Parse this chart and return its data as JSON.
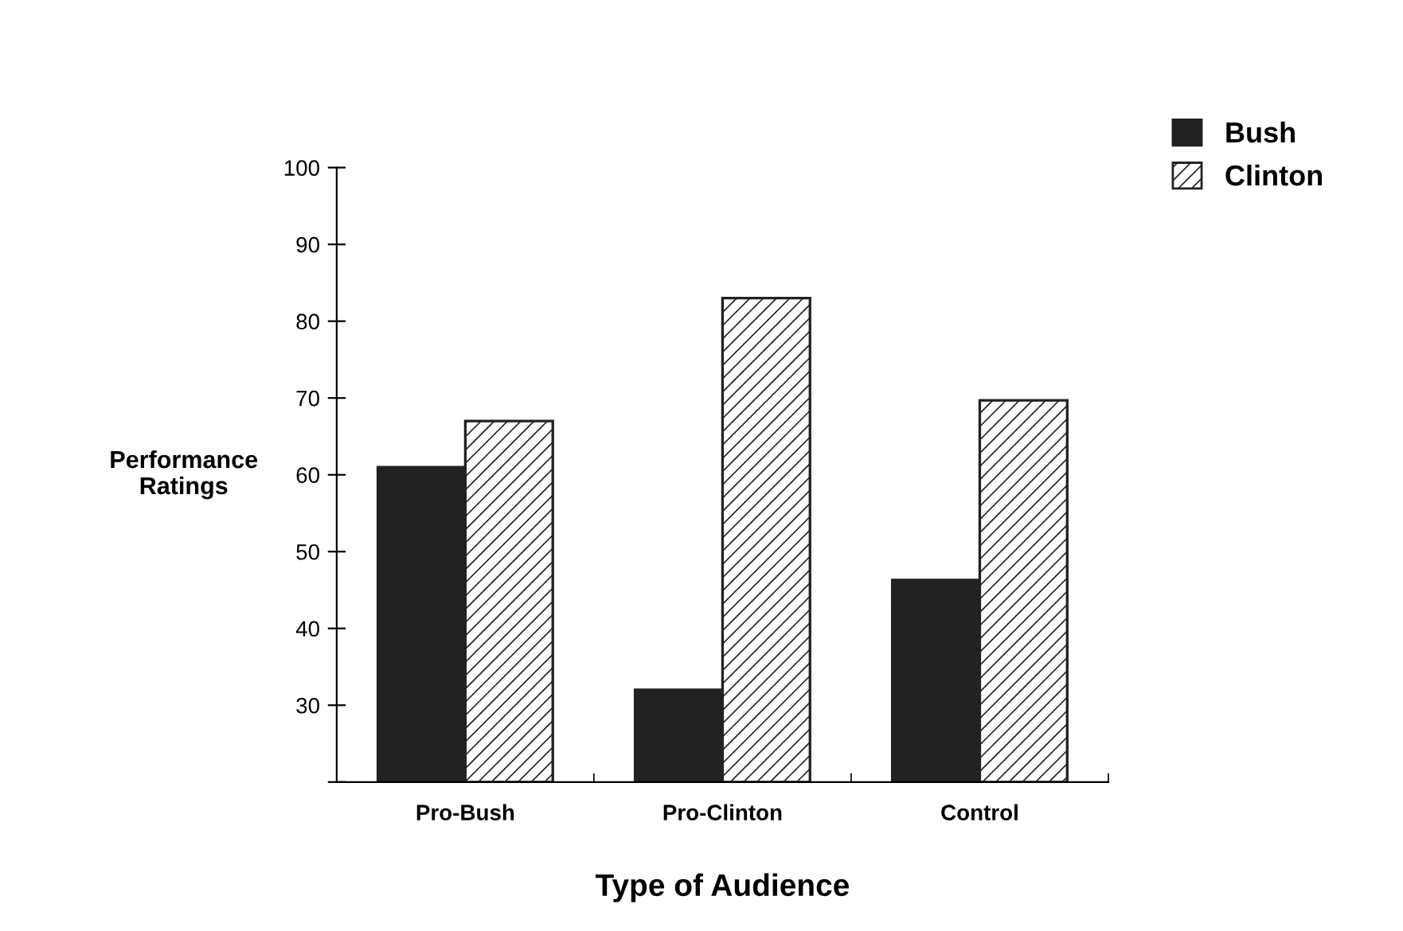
{
  "chart_data": {
    "type": "bar",
    "xlabel": "Type of Audience",
    "ylabel": "Performance\nRatings",
    "categories": [
      "Pro-Bush",
      "Pro-Clinton",
      "Control"
    ],
    "series": [
      {
        "name": "Bush",
        "color": "#222222",
        "values": [
          61,
          32,
          46.3
        ]
      },
      {
        "name": "Clinton",
        "color": "#222222",
        "values": [
          67,
          83,
          69.7
        ]
      }
    ],
    "ylim": [
      20,
      100
    ],
    "yticks": [
      {
        "value": 20,
        "label": null
      },
      30,
      40,
      50,
      60,
      70,
      80,
      90,
      100
    ],
    "grid": false,
    "legend": "top right"
  }
}
